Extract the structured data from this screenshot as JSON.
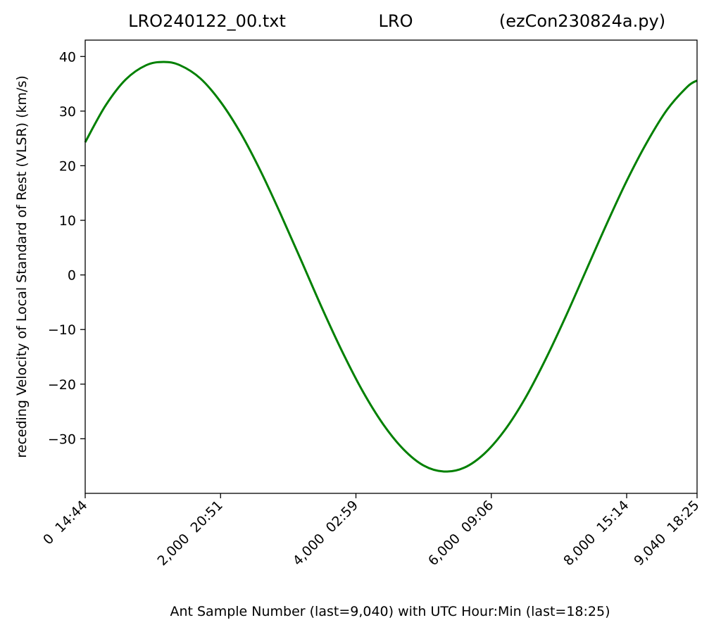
{
  "chart_data": {
    "type": "line",
    "title": {
      "left": "LRO240122_00.txt",
      "center": "LRO",
      "right": "(ezCon230824a.py)"
    },
    "xlabel": "Ant Sample Number (last=9,040) with UTC Hour:Min (last=18:25)",
    "ylabel": "receding Velocity of Local Standard of Rest (VLSR) (km/s)",
    "xlim": [
      0,
      9040
    ],
    "ylim": [
      -40,
      43
    ],
    "x_ticks": [
      {
        "value": 0,
        "label": "0  14:44"
      },
      {
        "value": 2000,
        "label": "2,000  20:51"
      },
      {
        "value": 4000,
        "label": "4,000  02:59"
      },
      {
        "value": 6000,
        "label": "6,000  09:06"
      },
      {
        "value": 8000,
        "label": "8,000  15:14"
      },
      {
        "value": 9040,
        "label": "9,040  18:25"
      }
    ],
    "y_ticks": [
      {
        "value": 40,
        "label": "40"
      },
      {
        "value": 30,
        "label": "30"
      },
      {
        "value": 20,
        "label": "20"
      },
      {
        "value": 10,
        "label": "10"
      },
      {
        "value": 0,
        "label": "0"
      },
      {
        "value": -10,
        "label": "−10"
      },
      {
        "value": -20,
        "label": "−20"
      },
      {
        "value": -30,
        "label": "−30"
      }
    ],
    "grid": false,
    "series": [
      {
        "color": "#008000",
        "x": [
          0,
          300,
          600,
          900,
          1160,
          1400,
          1700,
          2000,
          2300,
          2600,
          2900,
          3200,
          3500,
          3800,
          4100,
          4400,
          4700,
          5000,
          5300,
          5600,
          5900,
          6200,
          6500,
          6800,
          7100,
          7400,
          7700,
          8000,
          8300,
          8600,
          8900,
          9040
        ],
        "y": [
          24.3,
          31.0,
          35.8,
          38.4,
          39.0,
          38.4,
          36.0,
          31.7,
          25.9,
          18.8,
          10.8,
          2.4,
          -6.1,
          -14.1,
          -21.3,
          -27.3,
          -31.9,
          -34.9,
          -36.0,
          -35.3,
          -32.7,
          -28.4,
          -22.6,
          -15.5,
          -7.6,
          0.8,
          9.2,
          17.2,
          24.3,
          30.3,
          34.5,
          35.6
        ]
      }
    ]
  }
}
